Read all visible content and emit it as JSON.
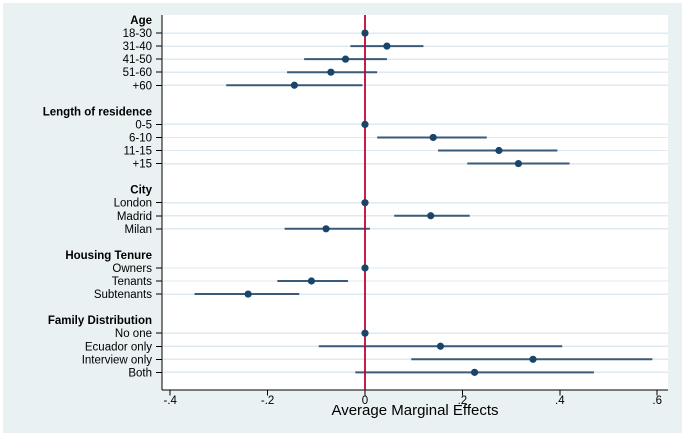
{
  "chart_data": {
    "type": "scatter",
    "subtype": "coefficient-forest-plot",
    "title": "",
    "xlabel": "Average Marginal Effects",
    "ylabel": "",
    "xlim": [
      -0.42,
      0.62
    ],
    "grid": true,
    "legend": "none",
    "zero_reference_line": 0,
    "x_ticks": [
      {
        "value": -0.4,
        "label": "-.4"
      },
      {
        "value": -0.2,
        "label": "-.2"
      },
      {
        "value": 0,
        "label": "0"
      },
      {
        "value": 0.2,
        "label": ".2"
      },
      {
        "value": 0.4,
        "label": ".4"
      },
      {
        "value": 0.6,
        "label": ".6"
      }
    ],
    "groups": [
      {
        "label": "Age",
        "items": [
          {
            "label": "18-30",
            "estimate": 0,
            "ci_low": null,
            "ci_high": null,
            "reference": true
          },
          {
            "label": "31-40",
            "estimate": 0.045,
            "ci_low": -0.03,
            "ci_high": 0.12,
            "reference": false
          },
          {
            "label": "41-50",
            "estimate": -0.04,
            "ci_low": -0.125,
            "ci_high": 0.045,
            "reference": false
          },
          {
            "label": "51-60",
            "estimate": -0.07,
            "ci_low": -0.16,
            "ci_high": 0.025,
            "reference": false
          },
          {
            "label": "+60",
            "estimate": -0.145,
            "ci_low": -0.285,
            "ci_high": -0.005,
            "reference": false
          }
        ]
      },
      {
        "label": "Length of residence",
        "items": [
          {
            "label": "0-5",
            "estimate": 0,
            "ci_low": null,
            "ci_high": null,
            "reference": true
          },
          {
            "label": "6-10",
            "estimate": 0.14,
            "ci_low": 0.025,
            "ci_high": 0.25,
            "reference": false
          },
          {
            "label": "11-15",
            "estimate": 0.275,
            "ci_low": 0.15,
            "ci_high": 0.395,
            "reference": false
          },
          {
            "label": "+15",
            "estimate": 0.315,
            "ci_low": 0.21,
            "ci_high": 0.42,
            "reference": false
          }
        ]
      },
      {
        "label": "City",
        "items": [
          {
            "label": "London",
            "estimate": 0,
            "ci_low": null,
            "ci_high": null,
            "reference": true
          },
          {
            "label": "Madrid",
            "estimate": 0.135,
            "ci_low": 0.06,
            "ci_high": 0.215,
            "reference": false
          },
          {
            "label": "Milan",
            "estimate": -0.08,
            "ci_low": -0.165,
            "ci_high": 0.01,
            "reference": false
          }
        ]
      },
      {
        "label": "Housing Tenure",
        "items": [
          {
            "label": "Owners",
            "estimate": 0,
            "ci_low": null,
            "ci_high": null,
            "reference": true
          },
          {
            "label": "Tenants",
            "estimate": -0.11,
            "ci_low": -0.18,
            "ci_high": -0.035,
            "reference": false
          },
          {
            "label": "Subtenants",
            "estimate": -0.24,
            "ci_low": -0.35,
            "ci_high": -0.135,
            "reference": false
          }
        ]
      },
      {
        "label": "Family Distribution",
        "items": [
          {
            "label": "No one",
            "estimate": 0,
            "ci_low": null,
            "ci_high": null,
            "reference": true
          },
          {
            "label": "Ecuador only",
            "estimate": 0.155,
            "ci_low": -0.095,
            "ci_high": 0.405,
            "reference": false
          },
          {
            "label": "Interview only",
            "estimate": 0.345,
            "ci_low": 0.095,
            "ci_high": 0.59,
            "reference": false
          },
          {
            "label": "Both",
            "estimate": 0.225,
            "ci_low": -0.02,
            "ci_high": 0.47,
            "reference": false
          }
        ]
      }
    ],
    "colors": {
      "figure_bg": "#e9f1f3",
      "plot_bg": "#ffffff",
      "grid": "#dfeaf0",
      "axis": "#000000",
      "ci_line": "#3a5a78",
      "marker": "#19456b",
      "zero_line": "#c10534",
      "text": "#000000"
    }
  }
}
